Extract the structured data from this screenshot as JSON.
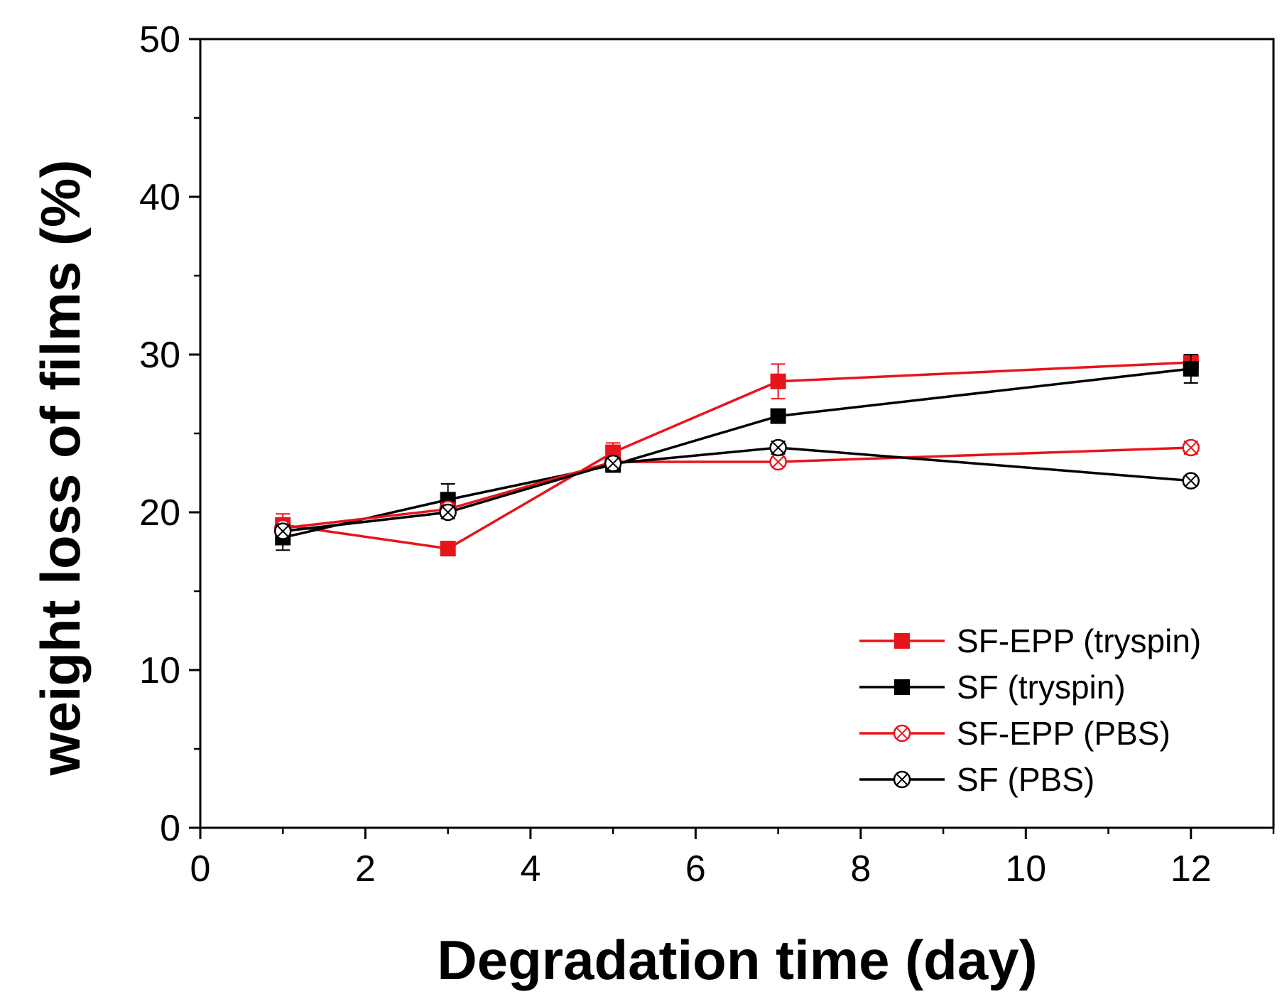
{
  "chart_data": {
    "type": "line",
    "title": "",
    "xlabel": "Degradation time (day)",
    "ylabel": "weight loss of films (%)",
    "xlim": [
      0,
      13
    ],
    "ylim": [
      0,
      50
    ],
    "xticks": [
      0,
      2,
      4,
      6,
      8,
      10,
      12
    ],
    "yticks": [
      0,
      10,
      20,
      30,
      40,
      50
    ],
    "grid": false,
    "legend_position": "bottom-right",
    "series": [
      {
        "name": "SF-EPP (tryspin)",
        "color": "#e8141b",
        "marker": "filled-square",
        "x": [
          1,
          3,
          5,
          7,
          12
        ],
        "y": [
          19.2,
          17.7,
          23.8,
          28.3,
          29.5
        ],
        "err": [
          0.7,
          0.3,
          0.6,
          1.1,
          0.5
        ]
      },
      {
        "name": "SF (tryspin)",
        "color": "#000000",
        "marker": "filled-square",
        "x": [
          1,
          3,
          5,
          7,
          12
        ],
        "y": [
          18.4,
          20.8,
          23.0,
          26.1,
          29.1
        ],
        "err": [
          0.8,
          1.0,
          0.3,
          0.2,
          0.9
        ]
      },
      {
        "name": "SF-EPP (PBS)",
        "color": "#e8141b",
        "marker": "crossed-circle",
        "x": [
          1,
          3,
          5,
          7,
          12
        ],
        "y": [
          19.0,
          20.2,
          23.2,
          23.2,
          24.1
        ],
        "err": [
          0.5,
          0.4,
          0.3,
          0.3,
          0.4
        ]
      },
      {
        "name": "SF (PBS)",
        "color": "#000000",
        "marker": "crossed-circle",
        "x": [
          1,
          3,
          5,
          7,
          12
        ],
        "y": [
          18.8,
          20.0,
          23.1,
          24.1,
          22.0
        ],
        "err": [
          0.4,
          0.4,
          0.3,
          0.4,
          0.3
        ]
      }
    ]
  }
}
